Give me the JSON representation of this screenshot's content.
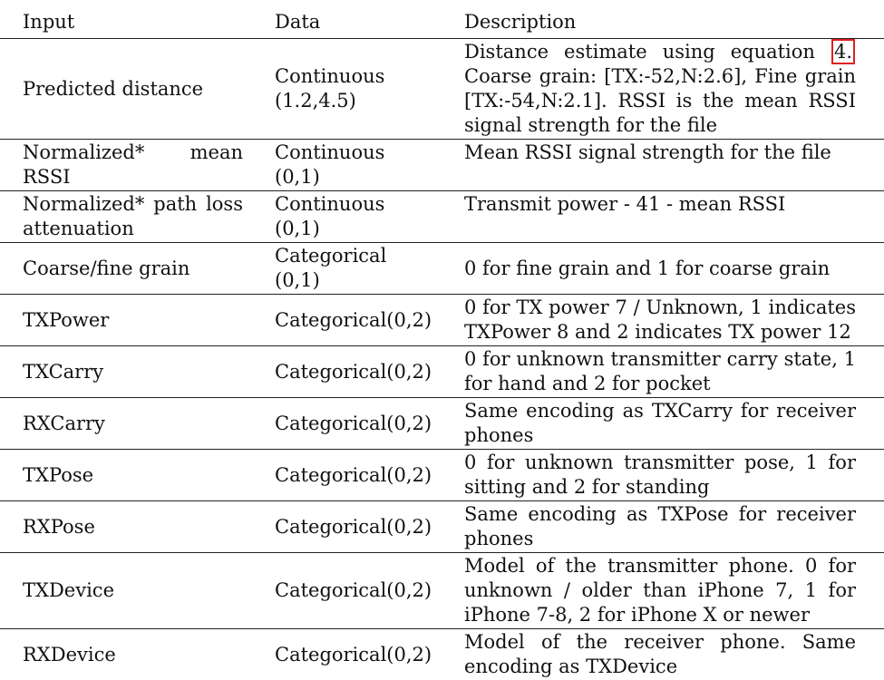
{
  "table": {
    "headers": [
      "Input",
      "Data",
      "Description"
    ],
    "rows": [
      {
        "input": "Predicted distance",
        "data": "Continuous (1.2,4.5)",
        "description_pre": "Distance estimate using equation ",
        "description_ref": "4.",
        "description_post": " Coarse grain: [TX:-52,N:2.6], Fine grain [TX:-54,N:2.1]. RSSI is the mean RSSI signal strength for the file"
      },
      {
        "input": "Normalized* mean RSSI",
        "data": "Continuous (0,1)",
        "description": "Mean RSSI signal strength for the file"
      },
      {
        "input": "Normalized* path loss attenuation",
        "data": "Continuous (0,1)",
        "description": "Transmit power - 41 - mean RSSI"
      },
      {
        "input": "Coarse/fine grain",
        "data": "Categorical (0,1)",
        "description": "0 for fine grain and 1 for coarse grain"
      },
      {
        "input": "TXPower",
        "data": "Categorical(0,2)",
        "description": "0 for TX power 7 / Unknown, 1 indicates TXPower 8 and 2 indicates TX power 12"
      },
      {
        "input": "TXCarry",
        "data": "Categorical(0,2)",
        "description": "0 for unknown transmitter carry state, 1 for hand and 2 for pocket"
      },
      {
        "input": "RXCarry",
        "data": "Categorical(0,2)",
        "description": "Same encoding as TXCarry for receiver phones"
      },
      {
        "input": "TXPose",
        "data": "Categorical(0,2)",
        "description": "0 for unknown transmitter pose, 1 for sitting and 2 for standing"
      },
      {
        "input": "RXPose",
        "data": "Categorical(0,2)",
        "description": "Same encoding as TXPose for receiver phones"
      },
      {
        "input": "TXDevice",
        "data": "Categorical(0,2)",
        "description": "Model of the transmitter phone. 0 for unknown / older than iPhone 7, 1 for iPhone 7-8, 2 for iPhone X or newer"
      },
      {
        "input": "RXDevice",
        "data": "Categorical(0,2)",
        "description": "Model of the receiver phone. Same encoding as TXDevice"
      }
    ]
  },
  "colors": {
    "highlight_box": "#e02020",
    "rule": "#222222",
    "text": "#111111"
  }
}
